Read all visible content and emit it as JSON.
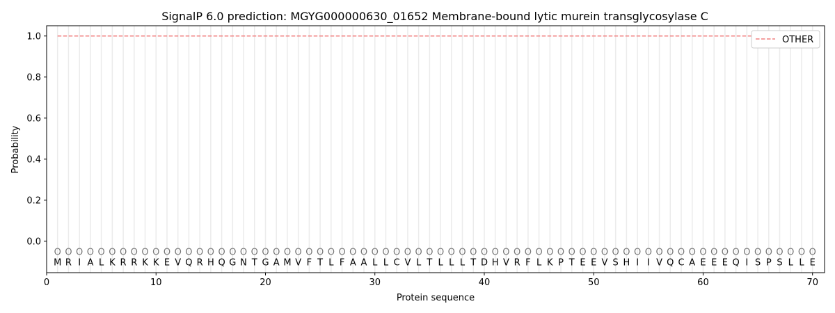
{
  "chart_data": {
    "type": "line",
    "title": "SignalP 6.0 prediction: MGYG000000630_01652 Membrane-bound lytic murein transglycosylase C",
    "xlabel": "Protein sequence",
    "ylabel": "Probability",
    "xlim": [
      0,
      71.1
    ],
    "ylim": [
      -0.153,
      1.05
    ],
    "xticks": [
      0,
      10,
      20,
      30,
      40,
      50,
      60,
      70
    ],
    "yticks": [
      0.0,
      0.2,
      0.4,
      0.6,
      0.8,
      1.0
    ],
    "ytick_labels": [
      "0.0",
      "0.2",
      "0.4",
      "0.6",
      "0.8",
      "1.0"
    ],
    "grid": "vertical lines at each residue",
    "legend_position": "top-right",
    "sequence": [
      "M",
      "R",
      "I",
      "A",
      "L",
      "K",
      "R",
      "R",
      "K",
      "K",
      "E",
      "V",
      "Q",
      "R",
      "H",
      "Q",
      "G",
      "N",
      "T",
      "G",
      "A",
      "M",
      "V",
      "F",
      "T",
      "L",
      "F",
      "A",
      "A",
      "L",
      "L",
      "C",
      "V",
      "L",
      "T",
      "L",
      "L",
      "L",
      "T",
      "D",
      "H",
      "V",
      "R",
      "F",
      "L",
      "K",
      "P",
      "T",
      "E",
      "E",
      "V",
      "S",
      "H",
      "I",
      "I",
      "V",
      "Q",
      "C",
      "A",
      "E",
      "E",
      "E",
      "Q",
      "I",
      "S",
      "P",
      "S",
      "L",
      "L",
      "E"
    ],
    "label_marker": "O",
    "series": [
      {
        "name": "OTHER",
        "color": "#f08080",
        "style": "dashed",
        "x_start": 1,
        "x_end": 70,
        "value": 1.0
      }
    ]
  }
}
